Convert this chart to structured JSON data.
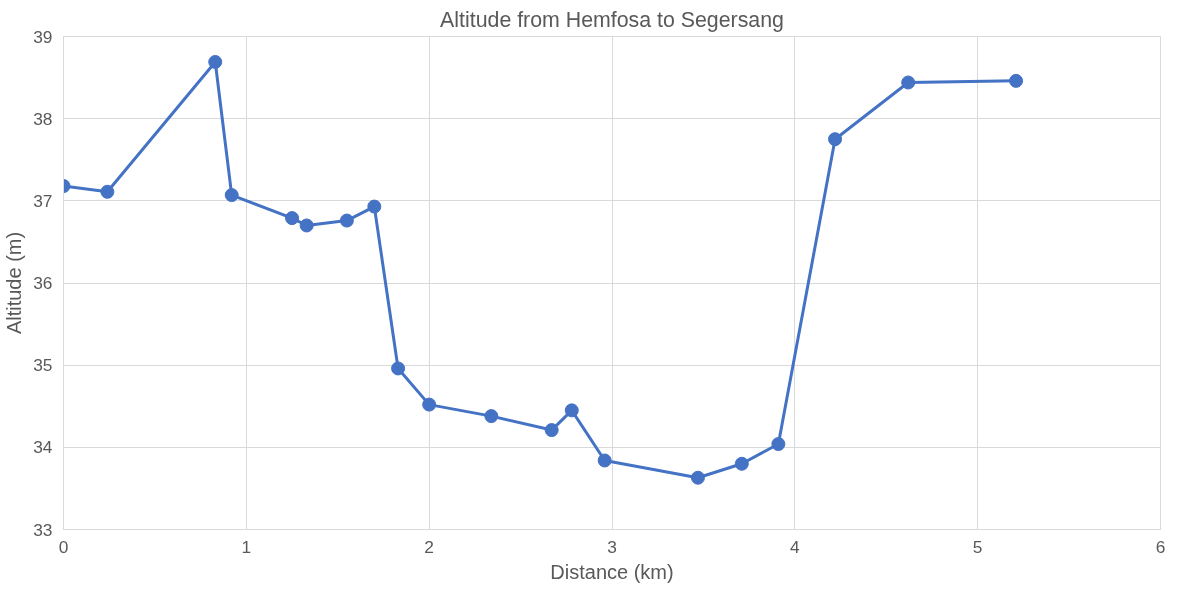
{
  "chart_data": {
    "type": "line",
    "title": "Altitude from Hemfosa to Segersang",
    "xlabel": "Distance (km)",
    "ylabel": "Altitude (m)",
    "x": [
      0,
      0.24,
      0.83,
      0.92,
      1.25,
      1.33,
      1.55,
      1.7,
      1.83,
      2.0,
      2.34,
      2.67,
      2.78,
      2.96,
      3.47,
      3.71,
      3.91,
      4.22,
      4.62,
      5.21
    ],
    "series": [
      {
        "color": "#4472c4",
        "values": [
          37.18,
          37.11,
          38.69,
          37.07,
          36.79,
          36.7,
          36.76,
          36.93,
          34.96,
          34.52,
          34.38,
          34.21,
          34.45,
          33.84,
          33.63,
          33.8,
          34.04,
          37.75,
          38.44,
          38.46
        ]
      }
    ],
    "xlim": [
      0,
      6
    ],
    "xticks": [
      0,
      1,
      2,
      3,
      4,
      5,
      6
    ],
    "ylim": [
      33,
      39
    ],
    "yticks": [
      33,
      34,
      35,
      36,
      37,
      38,
      39
    ],
    "grid": true,
    "marker": "circle",
    "line_style": "solid"
  }
}
